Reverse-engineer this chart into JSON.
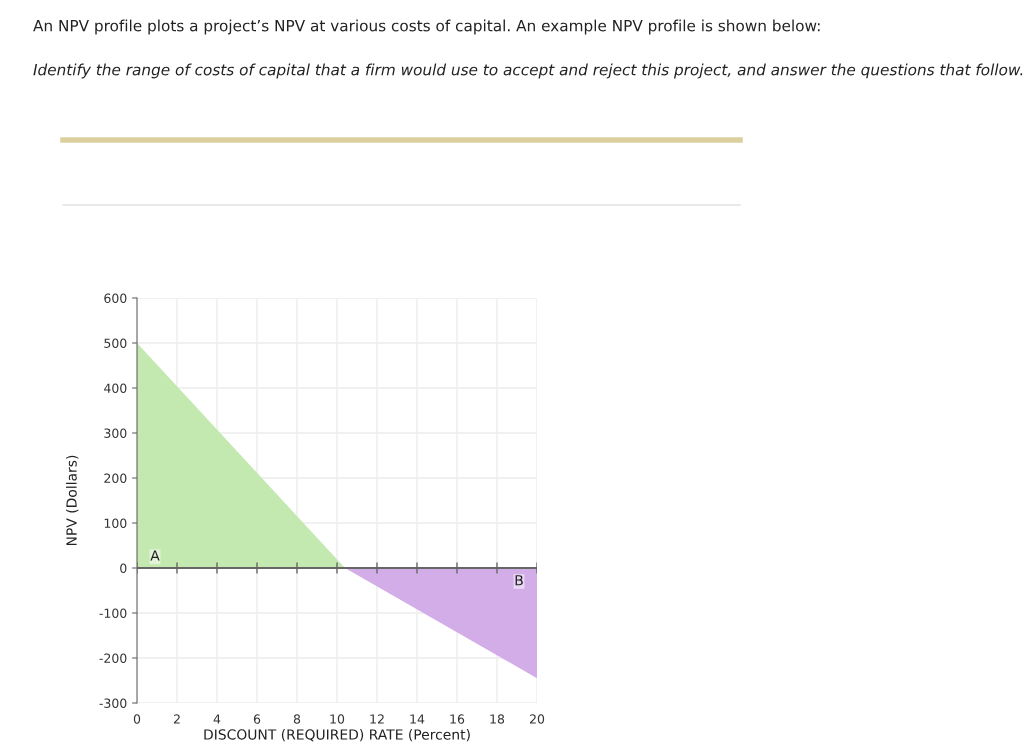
{
  "chart_data": {
    "type": "area",
    "title": "An NPV profile plots a project’s NPV at various costs of capital. An example NPV profile is shown below:",
    "subtitle": "Identify the range of costs of capital that a firm would use to accept and reject this project, and answer the questions that follow.",
    "xlabel": "DISCOUNT (REQUIRED) RATE (Percent)",
    "ylabel": "NPV (Dollars)",
    "series": [
      {
        "color": "#c3e9b0",
        "x": [
          0,
          10.4
        ],
        "values": [
          500,
          0
        ]
      },
      {
        "color": "#d3ade8",
        "x": [
          10.4,
          20
        ],
        "values": [
          0,
          -245
        ]
      }
    ],
    "annotations": [
      {
        "text": "A",
        "x": 0.9,
        "y": 25
      },
      {
        "text": "B",
        "x": 19.1,
        "y": -30
      }
    ],
    "ref_lines": [
      {
        "axis": "y",
        "value": 0,
        "color": "#666666"
      }
    ],
    "xlim": [
      0,
      20
    ],
    "xticks": [
      0,
      2,
      4,
      6,
      8,
      10,
      12,
      14,
      16,
      18,
      20
    ],
    "ylim": [
      -300,
      600
    ],
    "yticks": [
      -300,
      -200,
      -100,
      0,
      100,
      200,
      300,
      400,
      500,
      600
    ],
    "grid": true
  }
}
